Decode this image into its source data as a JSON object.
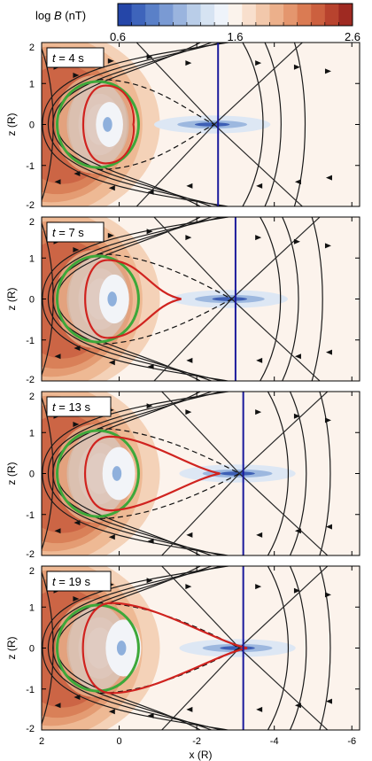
{
  "colorbar": {
    "label_prefix": "log ",
    "label_var": "B",
    "label_unit": " (nT)",
    "ticks": [
      "0.6",
      "1.6",
      "2.6"
    ],
    "range": [
      0.6,
      2.6
    ],
    "colors": [
      "#2546a8",
      "#3e64bb",
      "#5a80c8",
      "#7a9ad3",
      "#9ab4de",
      "#b9cde8",
      "#d6e3f2",
      "#eef3fa",
      "#fbf3ec",
      "#f8dfcd",
      "#f2c8ab",
      "#ecb08b",
      "#e4966e",
      "#da7b53",
      "#cc603f",
      "#b8432e",
      "#9f2a22"
    ]
  },
  "panels": [
    {
      "t_label": "t",
      "t_text": " = 4 s",
      "ylabel": "z (R)",
      "vline_x": -2.55
    },
    {
      "t_label": "t",
      "t_text": " = 7 s",
      "ylabel": "z (R)",
      "vline_x": -3.0
    },
    {
      "t_label": "t",
      "t_text": " = 13 s",
      "ylabel": "z (R)",
      "vline_x": -3.2
    },
    {
      "t_label": "t",
      "t_text": " = 19 s",
      "ylabel": "z (R)",
      "vline_x": -3.2
    }
  ],
  "xaxis": {
    "label": "x (R)",
    "ticks": [
      "2",
      "0",
      "-2",
      "-4",
      "-6"
    ],
    "tick_values": [
      2,
      0,
      -2,
      -4,
      -6
    ],
    "range": [
      2,
      -6.2
    ]
  },
  "yaxis": {
    "ticks": [
      "2",
      "1",
      "0",
      "-1",
      "-2"
    ],
    "tick_values": [
      2,
      1,
      0,
      -1,
      -2
    ],
    "range": [
      -2,
      2
    ]
  },
  "chart_data": {
    "type": "heatmap",
    "title": "",
    "xlabel": "x (R)",
    "ylabel": "z (R)",
    "xlim": [
      2,
      -6.2
    ],
    "ylim": [
      -2,
      2
    ],
    "colorbar_label": "log B (nT)",
    "colorbar_range": [
      0.6,
      2.6
    ],
    "panels": [
      {
        "time": "t = 4 s",
        "vertical_line_x": -2.55,
        "x_neutral_line": -2.4
      },
      {
        "time": "t = 7 s",
        "vertical_line_x": -3.0,
        "x_neutral_line": -2.9
      },
      {
        "time": "t = 13 s",
        "vertical_line_x": -3.2,
        "x_neutral_line": -3.1
      },
      {
        "time": "t = 19 s",
        "vertical_line_x": -3.2,
        "x_neutral_line": -3.2
      }
    ]
  }
}
